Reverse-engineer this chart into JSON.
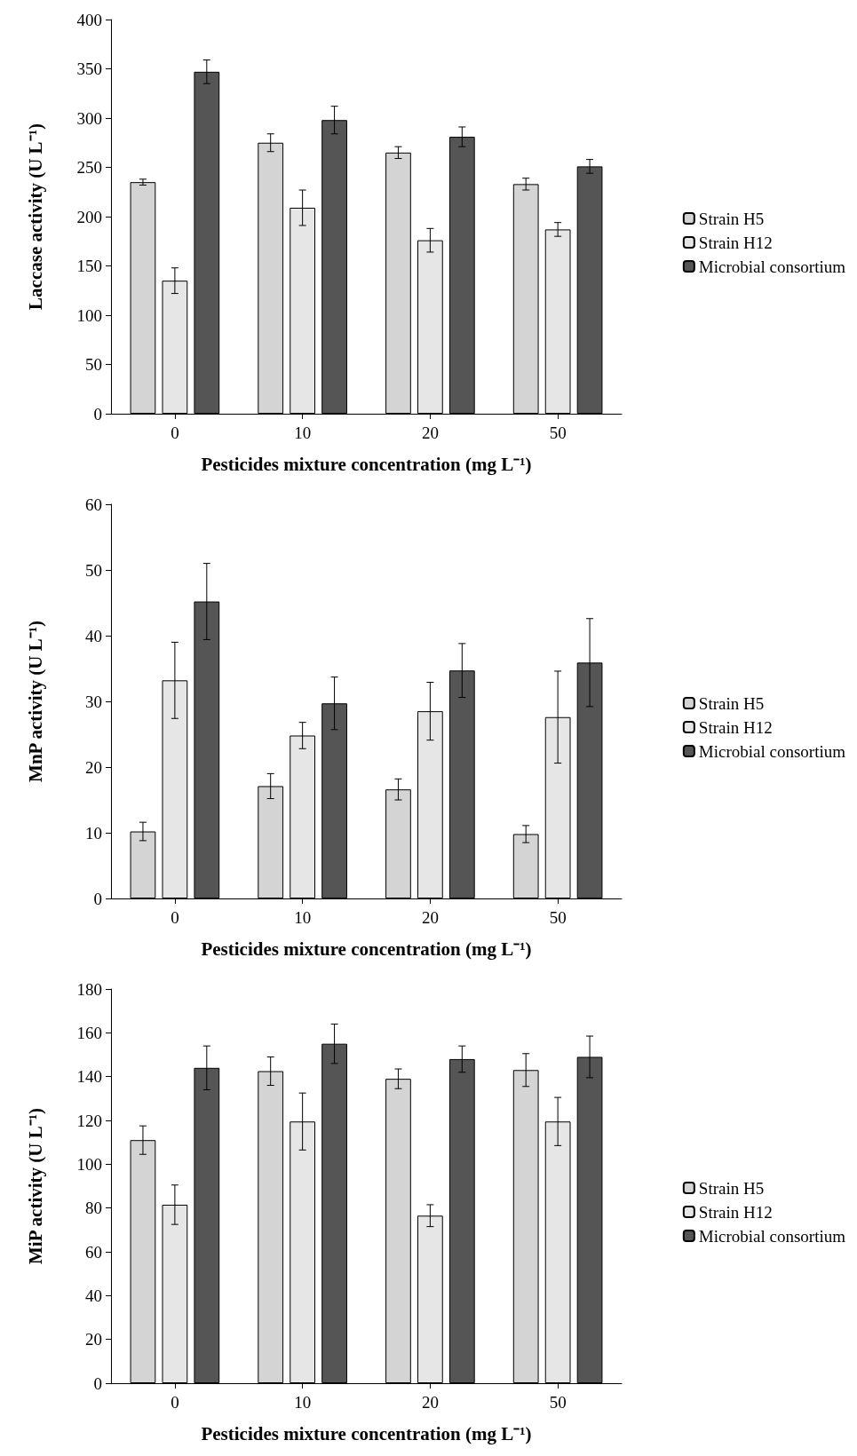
{
  "chart_data": [
    {
      "type": "bar",
      "xlabel": "Pesticides mixture concentration (mg L⁻¹)",
      "ylabel": "Laccase activity (U L⁻¹)",
      "categories": [
        "0",
        "10",
        "20",
        "50"
      ],
      "ylim": [
        0,
        400
      ],
      "yticks": [
        0,
        50,
        100,
        150,
        200,
        250,
        300,
        350,
        400
      ],
      "grid": false,
      "legend": "right",
      "series": [
        {
          "name": "Strain H5",
          "color": "#d4d4d4",
          "values": [
            235,
            275,
            265,
            233
          ],
          "errors": [
            3,
            9,
            6,
            6
          ]
        },
        {
          "name": "Strain H12",
          "color": "#e6e6e6",
          "values": [
            135,
            209,
            176,
            187
          ],
          "errors": [
            13,
            18,
            12,
            7
          ]
        },
        {
          "name": "Microbial consortium",
          "color": "#555555",
          "values": [
            347,
            298,
            281,
            251
          ],
          "errors": [
            12,
            14,
            10,
            7
          ]
        }
      ]
    },
    {
      "type": "bar",
      "xlabel": "Pesticides mixture concentration (mg L⁻¹)",
      "ylabel": "MnP activity (U L⁻¹)",
      "categories": [
        "0",
        "10",
        "20",
        "50"
      ],
      "ylim": [
        0,
        60
      ],
      "yticks": [
        0,
        10,
        20,
        30,
        40,
        50,
        60
      ],
      "grid": false,
      "legend": "right",
      "series": [
        {
          "name": "Strain H5",
          "color": "#d4d4d4",
          "values": [
            10.2,
            17.1,
            16.6,
            9.8
          ],
          "errors": [
            1.4,
            1.9,
            1.6,
            1.3
          ]
        },
        {
          "name": "Strain H12",
          "color": "#e6e6e6",
          "values": [
            33.2,
            24.8,
            28.5,
            27.6
          ],
          "errors": [
            5.8,
            2,
            4.4,
            7
          ]
        },
        {
          "name": "Microbial consortium",
          "color": "#555555",
          "values": [
            45.2,
            29.7,
            34.7,
            35.9
          ],
          "errors": [
            5.8,
            4,
            4.1,
            6.7
          ]
        }
      ]
    },
    {
      "type": "bar",
      "xlabel": "Pesticides mixture concentration (mg L⁻¹)",
      "ylabel": "MiP activity (U L⁻¹)",
      "categories": [
        "0",
        "10",
        "20",
        "50"
      ],
      "ylim": [
        0,
        180
      ],
      "yticks": [
        0,
        20,
        40,
        60,
        80,
        100,
        120,
        140,
        160,
        180
      ],
      "grid": false,
      "legend": "right",
      "series": [
        {
          "name": "Strain H5",
          "color": "#d4d4d4",
          "values": [
            111,
            142.5,
            139,
            143
          ],
          "errors": [
            6.5,
            6.5,
            4.5,
            7.5
          ]
        },
        {
          "name": "Strain H12",
          "color": "#e6e6e6",
          "values": [
            81.5,
            119.5,
            76.5,
            119.5
          ],
          "errors": [
            9,
            13,
            5,
            11
          ]
        },
        {
          "name": "Microbial consortium",
          "color": "#555555",
          "values": [
            144,
            155,
            148,
            149
          ],
          "errors": [
            10,
            9,
            6,
            9.5
          ]
        }
      ]
    }
  ]
}
